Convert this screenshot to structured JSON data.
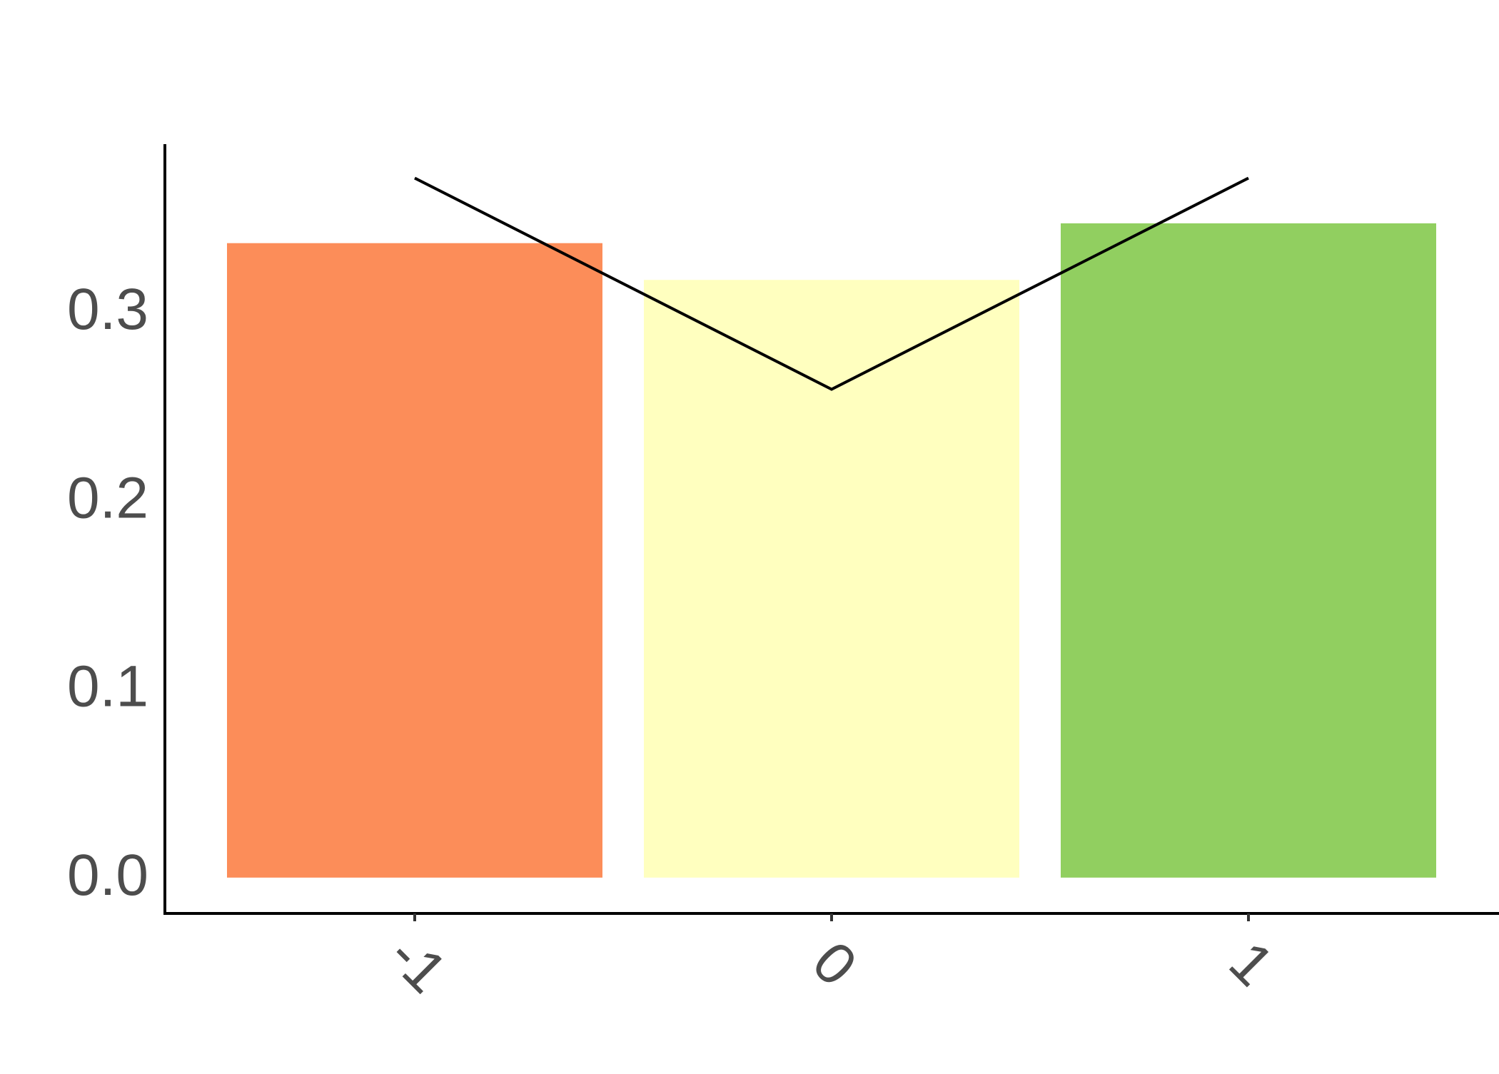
{
  "chart_data": {
    "type": "bar",
    "categories": [
      "-1",
      "0",
      "1"
    ],
    "values": [
      0.3365,
      0.317,
      0.347
    ],
    "bar_colors": [
      "#fc8d59",
      "#ffffbf",
      "#91cf60"
    ],
    "line": {
      "values": [
        0.371,
        0.259,
        0.371
      ],
      "color": "#000000"
    },
    "xlabel": "",
    "ylabel": "",
    "ylim": [
      -0.019,
      0.389
    ],
    "yticks": [
      "0.0",
      "0.1",
      "0.2",
      "0.3"
    ],
    "ytick_values": [
      0.0,
      0.1,
      0.2,
      0.3
    ],
    "grid": false,
    "legend": "none"
  }
}
